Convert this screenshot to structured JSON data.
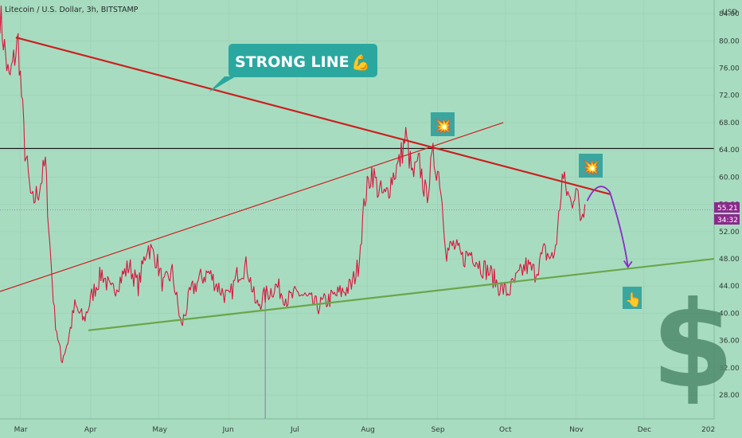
{
  "header": {
    "title": "Litecoin / U.S. Dollar, 3h, BITSTAMP",
    "currency": "USD"
  },
  "price_badges": {
    "last_price": "55.21",
    "countdown": "34:32"
  },
  "callout": {
    "label": "STRONG LINE",
    "emoji": "💪"
  },
  "markers": {
    "burst_1": "💥",
    "burst_2": "💥",
    "pointer": "👆",
    "dollar": "$"
  },
  "colors": {
    "background": "#a8dcc0",
    "candles": "#d8173f",
    "resistance_line": "#cc1f1f",
    "support_line": "#6aa64a",
    "horizontal_line": "#111111",
    "projection": "#8a2bc9",
    "callout_bg": "#2aa8a0",
    "badge_bg": "#8b2a8c"
  },
  "chart_data": {
    "type": "line",
    "title": "Litecoin / U.S. Dollar, 3h, BITSTAMP",
    "xlabel": "",
    "ylabel": "USD",
    "x_tick_labels": [
      "Mar",
      "Apr",
      "May",
      "Jun",
      "Jul",
      "Aug",
      "Sep",
      "Oct",
      "Nov",
      "Dec",
      "202"
    ],
    "y_ticks": [
      28.0,
      32.0,
      36.0,
      40.0,
      44.0,
      48.0,
      52.0,
      56.0,
      60.0,
      64.0,
      68.0,
      72.0,
      76.0,
      80.0,
      84.0
    ],
    "y_tick_labels": [
      "28.00",
      "32.00",
      "36.00",
      "40.00",
      "44.00",
      "48.00",
      "52.00",
      "56.00",
      "60.00",
      "64.00",
      "68.00",
      "72.00",
      "76.00",
      "80.00",
      "84.00"
    ],
    "ylim": [
      24.5,
      86
    ],
    "x_range": [
      "2022-02-20",
      "2023-01-01"
    ],
    "grid": true,
    "series": [
      {
        "x": [
          "2022-02-20",
          "2022-02-24",
          "2022-02-28",
          "2022-03-03",
          "2022-03-06",
          "2022-03-09",
          "2022-03-12",
          "2022-03-14",
          "2022-03-16",
          "2022-03-19",
          "2022-03-22",
          "2022-03-25",
          "2022-03-29",
          "2022-04-02",
          "2022-04-06",
          "2022-04-10",
          "2022-04-14",
          "2022-04-18",
          "2022-04-22",
          "2022-04-26",
          "2022-04-30",
          "2022-05-03",
          "2022-05-07",
          "2022-05-11",
          "2022-05-15",
          "2022-05-19",
          "2022-05-23",
          "2022-05-27",
          "2022-06-01",
          "2022-06-05",
          "2022-06-09",
          "2022-06-13",
          "2022-06-18",
          "2022-06-22",
          "2022-06-27",
          "2022-07-02",
          "2022-07-06",
          "2022-07-10",
          "2022-07-15",
          "2022-07-20",
          "2022-07-25",
          "2022-07-28",
          "2022-07-31",
          "2022-08-03",
          "2022-08-06",
          "2022-08-09",
          "2022-08-12",
          "2022-08-15",
          "2022-08-18",
          "2022-08-21",
          "2022-08-24",
          "2022-08-27",
          "2022-08-30",
          "2022-09-02",
          "2022-09-05",
          "2022-09-08",
          "2022-09-12",
          "2022-09-16",
          "2022-09-20",
          "2022-09-24",
          "2022-09-28",
          "2022-10-02",
          "2022-10-06",
          "2022-10-10",
          "2022-10-14",
          "2022-10-18",
          "2022-10-22",
          "2022-10-24",
          "2022-10-26",
          "2022-10-28",
          "2022-10-30",
          "2022-11-01",
          "2022-11-03",
          "2022-11-05"
        ],
        "y": [
          84,
          74,
          80,
          64,
          56,
          58,
          62,
          50,
          40,
          33,
          36,
          41,
          39,
          43,
          46,
          43,
          45,
          47,
          44,
          50,
          48,
          44,
          46,
          38,
          43,
          45,
          46,
          44,
          42,
          46,
          47,
          41,
          43,
          44,
          42,
          43,
          42,
          41,
          42,
          43,
          44,
          47,
          57,
          61,
          58,
          57,
          60,
          62,
          66,
          60,
          62,
          57,
          63,
          60,
          49,
          50,
          48,
          49,
          47,
          46,
          44,
          43,
          45,
          47,
          46,
          49,
          48,
          52,
          60,
          58,
          56,
          59,
          54,
          56
        ]
      }
    ],
    "annotations": [
      {
        "type": "trendline",
        "name": "resistance",
        "x": [
          "2022-02-27",
          "2022-11-16"
        ],
        "y": [
          80.5,
          57.5
        ]
      },
      {
        "type": "trendline",
        "name": "support",
        "x": [
          "2022-03-31",
          "2023-01-01"
        ],
        "y": [
          37.5,
          48.0
        ]
      },
      {
        "type": "trendline",
        "name": "rising",
        "x": [
          "2022-02-20",
          "2022-09-30"
        ],
        "y": [
          43.2,
          68.0
        ]
      },
      {
        "type": "horizontal",
        "name": "level",
        "y": 64.2
      },
      {
        "type": "horizontal",
        "name": "last-price",
        "y": 55.21
      },
      {
        "type": "projection",
        "x": [
          "2022-11-06",
          "2022-11-11",
          "2022-11-16",
          "2022-11-22",
          "2022-11-24"
        ],
        "y": [
          56.5,
          58.3,
          57.8,
          51.5,
          46.8
        ]
      },
      {
        "type": "vertical",
        "x": "2022-06-17",
        "y": [
          24.5,
          43.5
        ]
      }
    ]
  }
}
